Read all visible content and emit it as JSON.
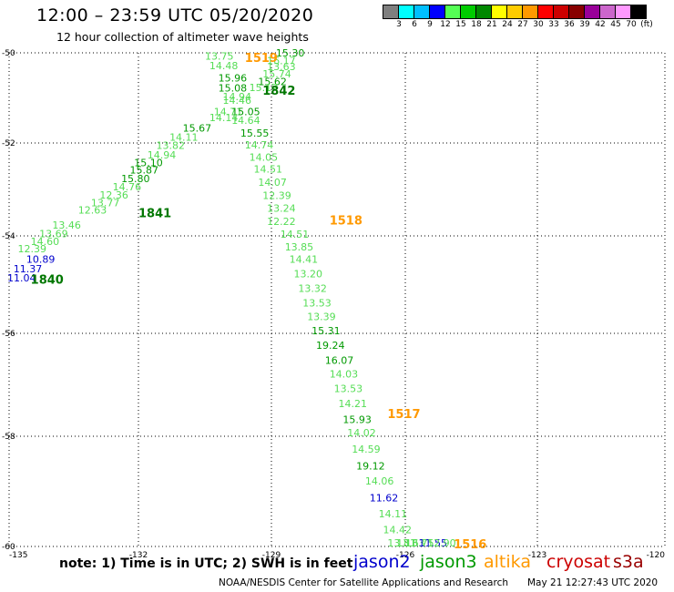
{
  "header": {
    "title": "12:00 – 23:59 UTC 05/20/2020",
    "subtitle": "12 hour collection of altimeter wave heights"
  },
  "color_scale": {
    "labels": [
      "3",
      "6",
      "9",
      "12",
      "15",
      "18",
      "21",
      "24",
      "27",
      "30",
      "33",
      "36",
      "39",
      "42",
      "45",
      "70",
      "(ft)"
    ],
    "colors": [
      "#7f7f7f",
      "#00ffff",
      "#00bfff",
      "#0000ff",
      "#55ff55",
      "#00cc00",
      "#008800",
      "#ffff00",
      "#ffcc00",
      "#ff9900",
      "#ff0000",
      "#cc0000",
      "#880000",
      "#990099",
      "#cc66cc",
      "#ff99ff",
      "#000000"
    ]
  },
  "note": "note:  1) Time is in UTC;  2) SWH is in feet",
  "missions": [
    {
      "name": "jason2",
      "color": "#0000cc"
    },
    {
      "name": "jason3",
      "color": "#009900"
    },
    {
      "name": "altika",
      "color": "#ff9900"
    },
    {
      "name": "cryosat",
      "color": "#cc0000"
    },
    {
      "name": "s3a",
      "color": "#990000"
    }
  ],
  "footer": {
    "left": "NOAA/NESDIS Center for Satellite Applications and Research",
    "right": "May 21 12:27:43 UTC 2020"
  },
  "chart_data": {
    "type": "scatter",
    "xlim": [
      -135,
      -120
    ],
    "ylim": [
      -60,
      -50
    ],
    "x_ticks": [
      -135,
      -132,
      -129,
      -126,
      -123,
      -120
    ],
    "x_tick_labels": [
      "-135",
      "-132",
      "-129",
      "-126",
      "-123",
      "-120"
    ],
    "y_ticks": [
      -50,
      -52,
      -54,
      -56,
      -58,
      -60
    ],
    "y_tick_labels": [
      "-50",
      "-52",
      "-54",
      "-56",
      "-58",
      "-60"
    ],
    "grid": true,
    "wave_heights": [
      {
        "lon": -130.5,
        "lat": -50.15,
        "value": "13.75",
        "color": "#55dd55"
      },
      {
        "lon": -128.9,
        "lat": -50.08,
        "value": "15.30",
        "color": "#009900"
      },
      {
        "lon": -129.1,
        "lat": -50.25,
        "value": "16.17",
        "color": "#55dd55"
      },
      {
        "lon": -130.4,
        "lat": -50.36,
        "value": "14.48",
        "color": "#55dd55"
      },
      {
        "lon": -129.1,
        "lat": -50.38,
        "value": "13.63",
        "color": "#55dd55"
      },
      {
        "lon": -129.2,
        "lat": -50.55,
        "value": "15.74",
        "color": "#55dd55"
      },
      {
        "lon": -130.2,
        "lat": -50.64,
        "value": "15.96",
        "color": "#009900"
      },
      {
        "lon": -129.3,
        "lat": -50.72,
        "value": "15.62",
        "color": "#009900"
      },
      {
        "lon": -129.5,
        "lat": -50.85,
        "value": "15.17",
        "color": "#55dd55"
      },
      {
        "lon": -130.2,
        "lat": -50.86,
        "value": "15.08",
        "color": "#009900"
      },
      {
        "lon": -130.1,
        "lat": -51.05,
        "value": "14.94",
        "color": "#55dd55"
      },
      {
        "lon": -130.1,
        "lat": -51.13,
        "value": "14.46",
        "color": "#55dd55"
      },
      {
        "lon": -130.3,
        "lat": -51.38,
        "value": "14.71",
        "color": "#55dd55"
      },
      {
        "lon": -129.9,
        "lat": -51.38,
        "value": "15.05",
        "color": "#009900"
      },
      {
        "lon": -130.4,
        "lat": -51.52,
        "value": "14.14",
        "color": "#55dd55"
      },
      {
        "lon": -129.9,
        "lat": -51.58,
        "value": "14.64",
        "color": "#55dd55"
      },
      {
        "lon": -131.0,
        "lat": -51.75,
        "value": "15.67",
        "color": "#009900"
      },
      {
        "lon": -129.7,
        "lat": -51.86,
        "value": "15.55",
        "color": "#009900"
      },
      {
        "lon": -131.3,
        "lat": -51.95,
        "value": "14.11",
        "color": "#55dd55"
      },
      {
        "lon": -129.6,
        "lat": -52.12,
        "value": "14.74",
        "color": "#55dd55"
      },
      {
        "lon": -131.6,
        "lat": -52.13,
        "value": "13.82",
        "color": "#55dd55"
      },
      {
        "lon": -131.8,
        "lat": -52.33,
        "value": "14.94",
        "color": "#55dd55"
      },
      {
        "lon": -129.5,
        "lat": -52.38,
        "value": "14.05",
        "color": "#55dd55"
      },
      {
        "lon": -132.1,
        "lat": -52.5,
        "value": "15.10",
        "color": "#009900"
      },
      {
        "lon": -129.4,
        "lat": -52.64,
        "value": "14.51",
        "color": "#55dd55"
      },
      {
        "lon": -132.2,
        "lat": -52.66,
        "value": "15.87",
        "color": "#009900"
      },
      {
        "lon": -132.4,
        "lat": -52.84,
        "value": "15.80",
        "color": "#009900"
      },
      {
        "lon": -129.3,
        "lat": -52.92,
        "value": "14.07",
        "color": "#55dd55"
      },
      {
        "lon": -132.6,
        "lat": -53.02,
        "value": "14.76",
        "color": "#55dd55"
      },
      {
        "lon": -132.9,
        "lat": -53.2,
        "value": "12.36",
        "color": "#55dd55"
      },
      {
        "lon": -129.2,
        "lat": -53.21,
        "value": "12.39",
        "color": "#55dd55"
      },
      {
        "lon": -133.1,
        "lat": -53.36,
        "value": "13.77",
        "color": "#55dd55"
      },
      {
        "lon": -129.1,
        "lat": -53.48,
        "value": "13.24",
        "color": "#55dd55"
      },
      {
        "lon": -133.4,
        "lat": -53.52,
        "value": "12.63",
        "color": "#55dd55"
      },
      {
        "lon": -129.1,
        "lat": -53.76,
        "value": "12.22",
        "color": "#55dd55"
      },
      {
        "lon": -134.0,
        "lat": -53.84,
        "value": "13.46",
        "color": "#55dd55"
      },
      {
        "lon": -134.3,
        "lat": -54.03,
        "value": "13.69",
        "color": "#55dd55"
      },
      {
        "lon": -128.8,
        "lat": -54.04,
        "value": "14.51",
        "color": "#55dd55"
      },
      {
        "lon": -134.5,
        "lat": -54.19,
        "value": "14.60",
        "color": "#55dd55"
      },
      {
        "lon": -128.7,
        "lat": -54.3,
        "value": "13.85",
        "color": "#55dd55"
      },
      {
        "lon": -134.8,
        "lat": -54.34,
        "value": "12.39",
        "color": "#55dd55"
      },
      {
        "lon": -128.6,
        "lat": -54.55,
        "value": "14.41",
        "color": "#55dd55"
      },
      {
        "lon": -134.6,
        "lat": -54.55,
        "value": "10.89",
        "color": "#0000cc"
      },
      {
        "lon": -134.9,
        "lat": -54.75,
        "value": "11.37",
        "color": "#0000cc"
      },
      {
        "lon": -128.5,
        "lat": -54.85,
        "value": "13.20",
        "color": "#55dd55"
      },
      {
        "lon": -135.3,
        "lat": -54.93,
        "value": "11.04",
        "color": "#0000cc"
      },
      {
        "lon": -128.4,
        "lat": -55.15,
        "value": "13.32",
        "color": "#55dd55"
      },
      {
        "lon": -128.3,
        "lat": -55.45,
        "value": "13.53",
        "color": "#55dd55"
      },
      {
        "lon": -128.2,
        "lat": -55.73,
        "value": "13.39",
        "color": "#55dd55"
      },
      {
        "lon": -128.1,
        "lat": -56.02,
        "value": "15.31",
        "color": "#009900"
      },
      {
        "lon": -128.0,
        "lat": -56.3,
        "value": "19.24",
        "color": "#009900"
      },
      {
        "lon": -127.8,
        "lat": -56.59,
        "value": "16.07",
        "color": "#009900"
      },
      {
        "lon": -127.7,
        "lat": -56.86,
        "value": "14.03",
        "color": "#55dd55"
      },
      {
        "lon": -127.6,
        "lat": -57.14,
        "value": "13.53",
        "color": "#55dd55"
      },
      {
        "lon": -127.5,
        "lat": -57.43,
        "value": "14.21",
        "color": "#55dd55"
      },
      {
        "lon": -127.4,
        "lat": -57.74,
        "value": "15.93",
        "color": "#009900"
      },
      {
        "lon": -127.3,
        "lat": -58.0,
        "value": "14.02",
        "color": "#55dd55"
      },
      {
        "lon": -127.2,
        "lat": -58.3,
        "value": "14.59",
        "color": "#55dd55"
      },
      {
        "lon": -127.1,
        "lat": -58.6,
        "value": "19.12",
        "color": "#009900"
      },
      {
        "lon": -126.9,
        "lat": -58.88,
        "value": "14.06",
        "color": "#55dd55"
      },
      {
        "lon": -126.8,
        "lat": -59.18,
        "value": "11.62",
        "color": "#0000cc"
      },
      {
        "lon": -126.6,
        "lat": -59.47,
        "value": "14.11",
        "color": "#55dd55"
      },
      {
        "lon": -126.5,
        "lat": -59.76,
        "value": "14.42",
        "color": "#55dd55"
      },
      {
        "lon": -126.4,
        "lat": -60.04,
        "value": "13.81",
        "color": "#55dd55"
      },
      {
        "lon": -126.2,
        "lat": -60.32,
        "value": "13.63",
        "color": "#55dd55"
      },
      {
        "lon": -126.0,
        "lat": -60.6,
        "value": "13.75",
        "color": "#55dd55"
      },
      {
        "lon": -125.7,
        "lat": -60.86,
        "value": "11.55",
        "color": "#0000cc"
      },
      {
        "lon": -125.5,
        "lat": -61.12,
        "value": "12.90",
        "color": "#55dd55"
      }
    ],
    "time_labels": [
      {
        "lon": -129.6,
        "lat": -50.2,
        "value": "1519",
        "color": "#ff9900"
      },
      {
        "lon": -129.2,
        "lat": -50.93,
        "value": "1842",
        "color": "#007700"
      },
      {
        "lon": -132.0,
        "lat": -53.6,
        "value": "1841",
        "color": "#007700"
      },
      {
        "lon": -127.7,
        "lat": -53.75,
        "value": "1518",
        "color": "#ff9900"
      },
      {
        "lon": -134.5,
        "lat": -54.98,
        "value": "1840",
        "color": "#007700"
      },
      {
        "lon": -126.4,
        "lat": -57.65,
        "value": "1517",
        "color": "#ff9900"
      },
      {
        "lon": -124.9,
        "lat": -61.1,
        "value": "1516",
        "color": "#ff9900"
      }
    ]
  }
}
